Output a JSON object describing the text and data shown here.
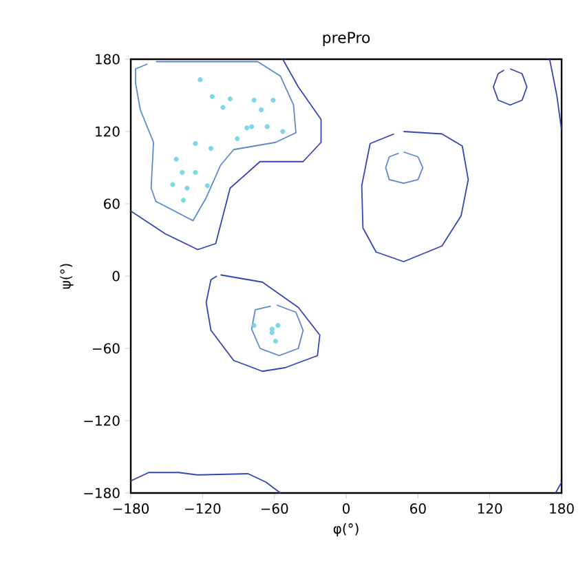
{
  "chart_data": {
    "type": "scatter",
    "title": "prePro",
    "xlabel": "φ(°)",
    "ylabel": "ψ(°)",
    "xlim": [
      -180,
      180
    ],
    "ylim": [
      -180,
      180
    ],
    "xticks": [
      {
        "value": -180,
        "label": "−180"
      },
      {
        "value": -120,
        "label": "−120"
      },
      {
        "value": -60,
        "label": "−60"
      },
      0,
      60,
      120,
      180
    ],
    "yticks": [
      {
        "value": -180,
        "label": "−180"
      },
      {
        "value": -120,
        "label": "−120"
      },
      {
        "value": -60,
        "label": "−60"
      },
      0,
      60,
      120,
      180
    ],
    "grid": false,
    "series": [
      {
        "type": "line",
        "color": "#3344b4",
        "marker": "none",
        "line_style": "solid",
        "x": [
          -180,
          -151,
          -124,
          -109,
          -97,
          -72,
          -36,
          -21,
          -21,
          -40,
          -53
        ],
        "values": [
          54,
          35,
          22,
          27,
          73,
          95,
          95,
          111,
          130,
          157,
          180
        ]
      },
      {
        "type": "line",
        "color": "#3344b4",
        "marker": "none",
        "line_style": "solid",
        "x": [
          -180,
          -165,
          -140,
          -124,
          -82,
          -67,
          -55
        ],
        "values": [
          -170,
          -163,
          -163,
          -165,
          -164,
          -171,
          -180
        ]
      },
      {
        "type": "line",
        "color": "#3344b4",
        "marker": "none",
        "line_style": "solid",
        "x": [
          170,
          176,
          180
        ],
        "values": [
          180,
          150,
          121
        ]
      },
      {
        "type": "line",
        "color": "#3344b4",
        "marker": "none",
        "line_style": "solid",
        "x": [
          175,
          180
        ],
        "values": [
          -180,
          -171
        ]
      },
      {
        "type": "line",
        "color": "#3344b4",
        "marker": "none",
        "line_style": "solid",
        "x": [
          137,
          147,
          151,
          147,
          137,
          127,
          123,
          127,
          132
        ],
        "values": [
          172,
          168,
          157,
          146,
          142,
          146,
          157,
          168,
          171
        ]
      },
      {
        "type": "line",
        "color": "#3344b4",
        "marker": "none",
        "line_style": "solid",
        "x": [
          48,
          80,
          97,
          102,
          96,
          80,
          48,
          25,
          14,
          13,
          20,
          40
        ],
        "values": [
          120,
          118,
          108,
          80,
          50,
          25,
          12,
          20,
          40,
          75,
          110,
          118
        ]
      },
      {
        "type": "line",
        "color": "#3344b4",
        "marker": "none",
        "line_style": "solid",
        "x": [
          -105,
          -70,
          -40,
          -22,
          -24,
          -51,
          -70,
          -94,
          -113,
          -117,
          -113,
          -108
        ],
        "values": [
          1,
          -5,
          -26,
          -49,
          -66,
          -76,
          -79,
          -70,
          -45,
          -22,
          -3,
          0
        ]
      },
      {
        "type": "line",
        "color": "#5a88d0",
        "marker": "none",
        "line_style": "solid",
        "x": [
          -159,
          -74,
          -55,
          -44,
          -42,
          -59,
          -94,
          -105,
          -117,
          -128,
          -159,
          -163,
          -161,
          -172,
          -176,
          -176,
          -166
        ],
        "values": [
          178,
          178,
          166,
          142,
          119,
          111,
          105,
          92,
          65,
          46,
          62,
          73,
          111,
          138,
          160,
          172,
          176
        ]
      },
      {
        "type": "line",
        "color": "#5a88d0",
        "marker": "none",
        "line_style": "solid",
        "x": [
          48,
          60,
          64,
          60,
          48,
          36,
          33,
          36,
          44
        ],
        "values": [
          103,
          99,
          90,
          80,
          77,
          80,
          90,
          99,
          102
        ]
      },
      {
        "type": "line",
        "color": "#5a88d0",
        "marker": "none",
        "line_style": "solid",
        "x": [
          -58,
          -42,
          -36,
          -40,
          -56,
          -72,
          -79,
          -76,
          -63
        ],
        "values": [
          -24,
          -30,
          -45,
          -60,
          -66,
          -60,
          -44,
          -28,
          -25
        ]
      },
      {
        "color": "#7fd6ea",
        "marker": "circle",
        "x": [
          -122,
          -112,
          -97,
          -103,
          -77,
          -61,
          -71,
          -83,
          -79,
          -66,
          -53,
          -91,
          -126,
          -113,
          -142,
          -137,
          -126,
          -145,
          -133,
          -116,
          -136,
          -77,
          -62,
          -57,
          -62,
          -59
        ],
        "values": [
          163,
          149,
          147,
          140,
          146,
          146,
          138,
          123,
          124,
          124,
          120,
          114,
          110,
          106,
          97,
          86,
          86,
          76,
          73,
          75,
          63,
          -41,
          -44,
          -41,
          -47,
          -54
        ]
      }
    ]
  }
}
